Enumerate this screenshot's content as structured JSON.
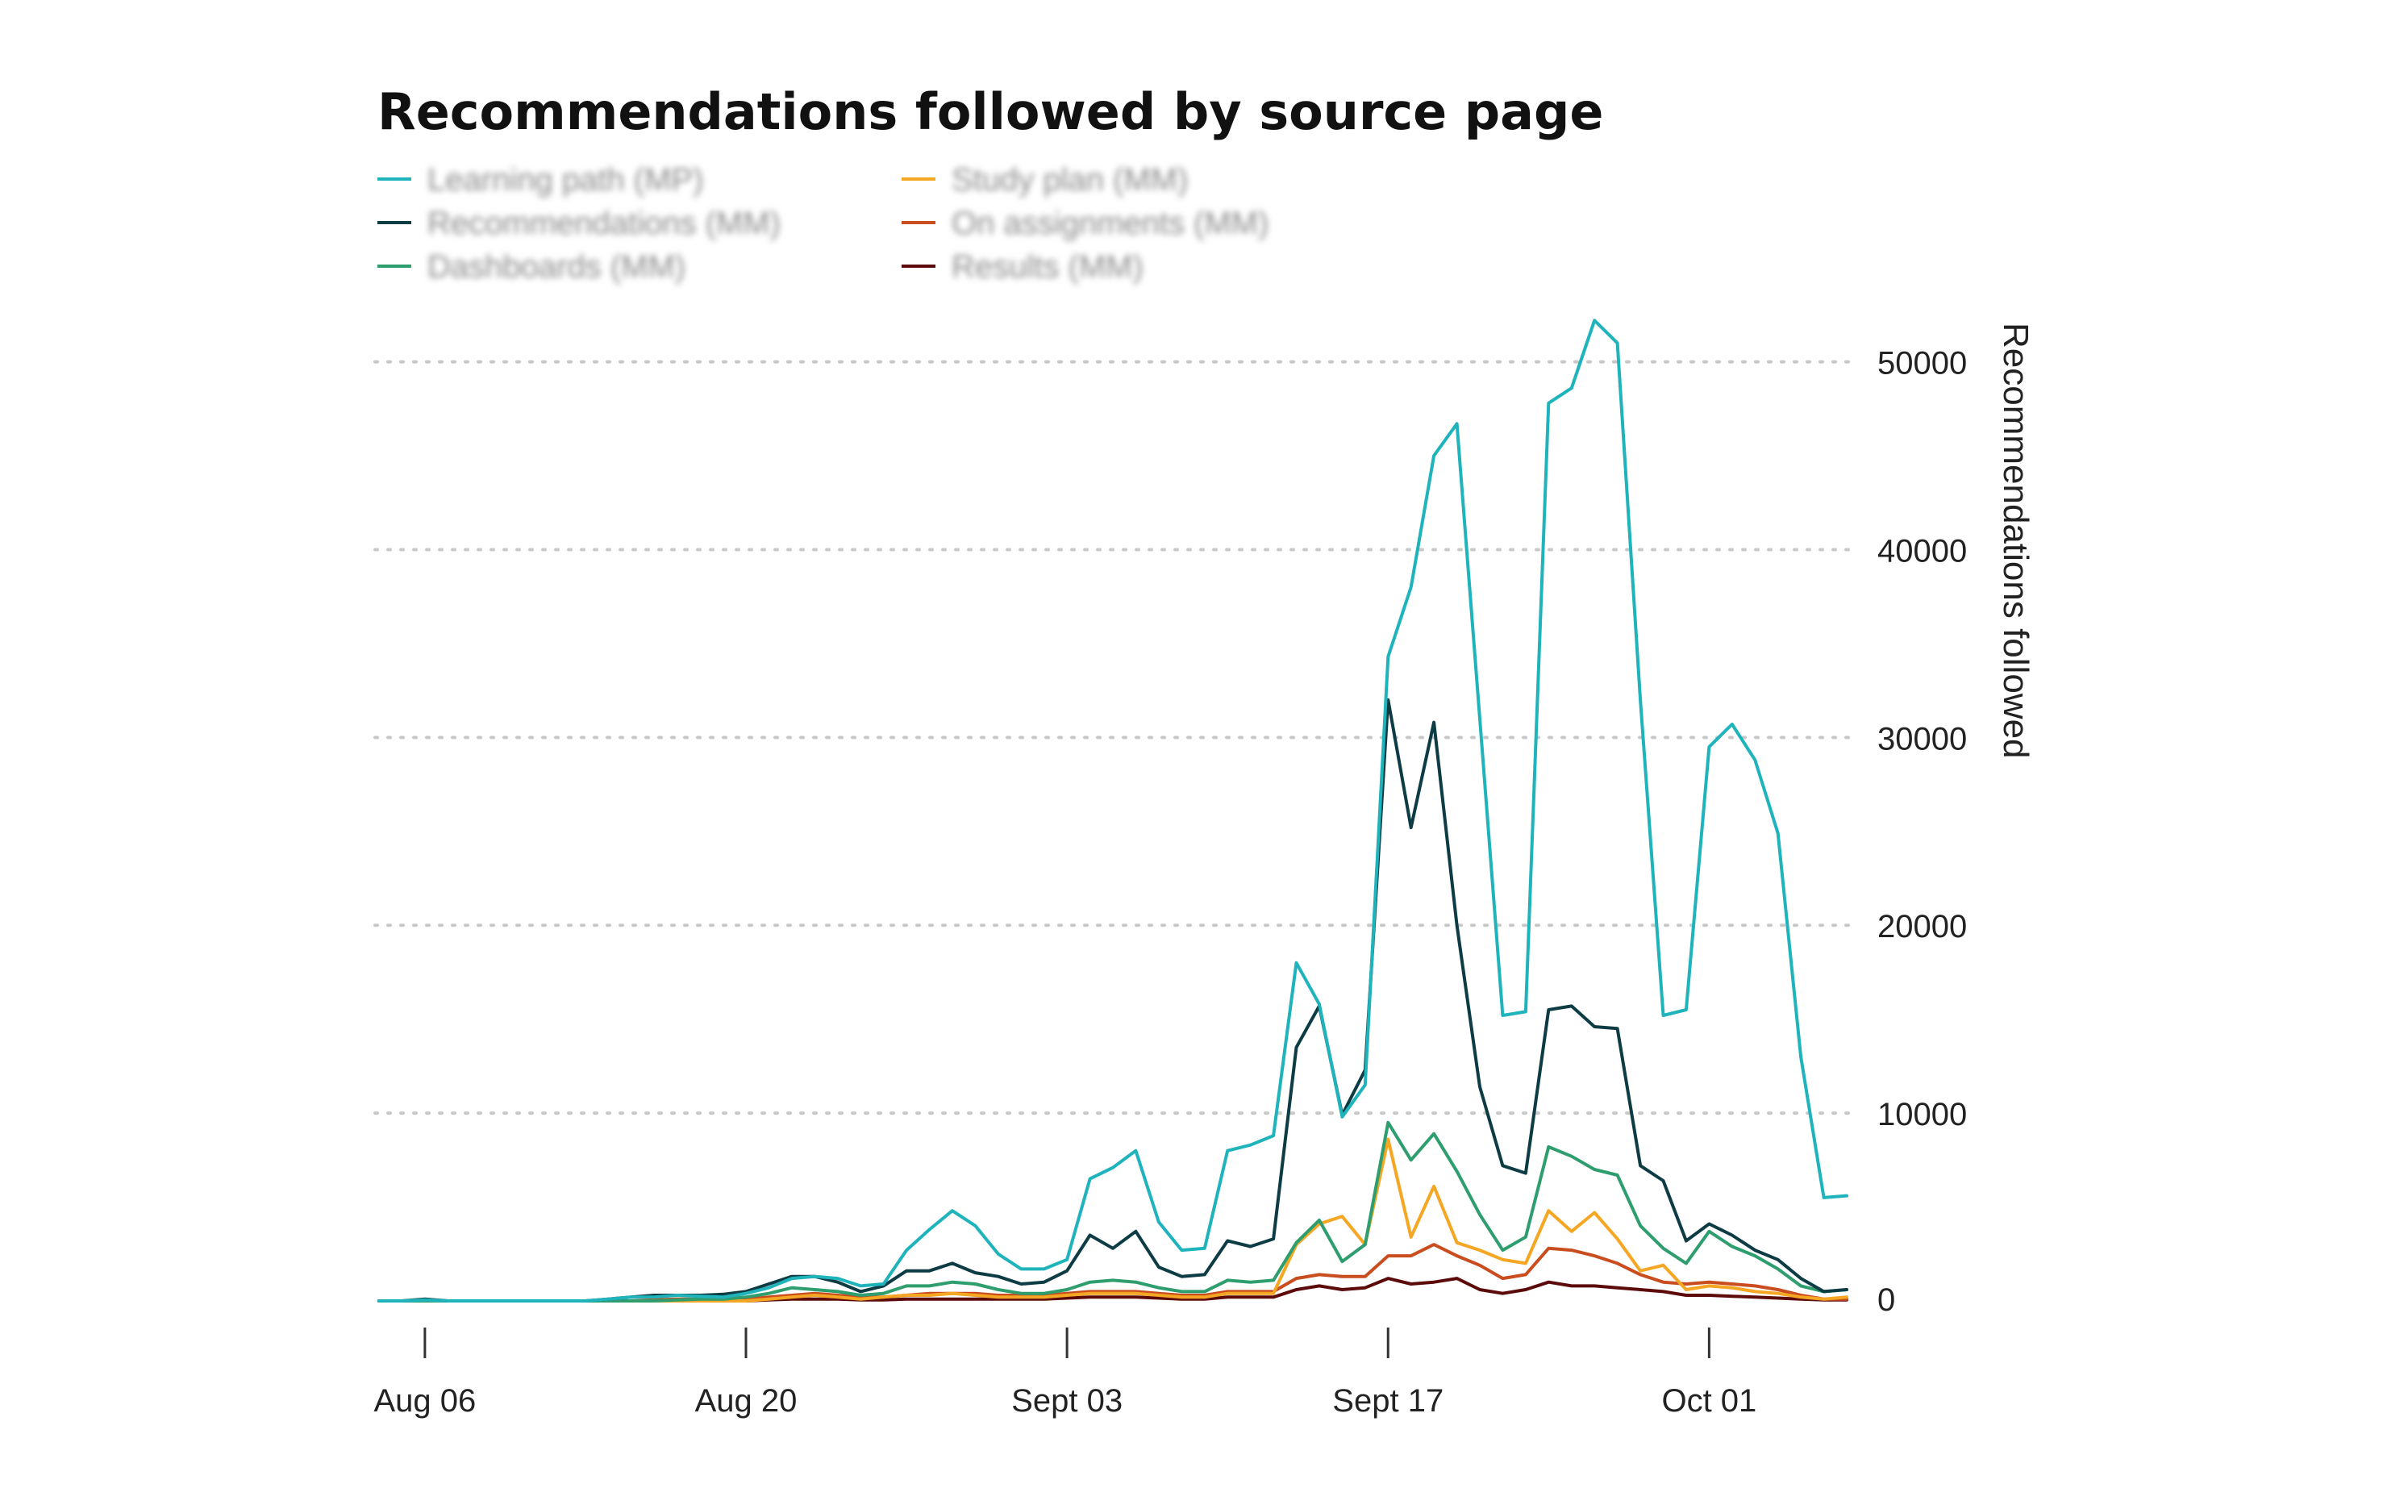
{
  "chart_data": {
    "type": "line",
    "title": "Recommendations followed by source page",
    "ylabel": "Recommendations followed",
    "xlabel": "",
    "ylim": [
      0,
      52000
    ],
    "yticks": [
      0,
      10000,
      20000,
      30000,
      40000,
      50000
    ],
    "y_axis_position": "right",
    "grid": true,
    "legend_position": "top-left",
    "x_ticks": [
      {
        "label": "Aug 06",
        "date": "2018-08-06"
      },
      {
        "label": "Aug 20",
        "date": "2018-08-20"
      },
      {
        "label": "Sept 03",
        "date": "2018-09-03"
      },
      {
        "label": "Sept 17",
        "date": "2018-09-17"
      },
      {
        "label": "Oct 01",
        "date": "2018-10-01"
      }
    ],
    "x": [
      "2018-08-04",
      "2018-08-05",
      "2018-08-06",
      "2018-08-07",
      "2018-08-08",
      "2018-08-09",
      "2018-08-10",
      "2018-08-11",
      "2018-08-12",
      "2018-08-13",
      "2018-08-14",
      "2018-08-15",
      "2018-08-16",
      "2018-08-17",
      "2018-08-18",
      "2018-08-19",
      "2018-08-20",
      "2018-08-21",
      "2018-08-22",
      "2018-08-23",
      "2018-08-24",
      "2018-08-25",
      "2018-08-26",
      "2018-08-27",
      "2018-08-28",
      "2018-08-29",
      "2018-08-30",
      "2018-08-31",
      "2018-09-01",
      "2018-09-02",
      "2018-09-03",
      "2018-09-04",
      "2018-09-05",
      "2018-09-06",
      "2018-09-07",
      "2018-09-08",
      "2018-09-09",
      "2018-09-10",
      "2018-09-11",
      "2018-09-12",
      "2018-09-13",
      "2018-09-14",
      "2018-09-15",
      "2018-09-16",
      "2018-09-17",
      "2018-09-18",
      "2018-09-19",
      "2018-09-20",
      "2018-09-21",
      "2018-09-22",
      "2018-09-23",
      "2018-09-24",
      "2018-09-25",
      "2018-09-26",
      "2018-09-27",
      "2018-09-28",
      "2018-09-29",
      "2018-09-30",
      "2018-10-01",
      "2018-10-02",
      "2018-10-03",
      "2018-10-04",
      "2018-10-05",
      "2018-10-06",
      "2018-10-07"
    ],
    "series": [
      {
        "name": "Learning path (MP)",
        "color": "#1fb3bc",
        "values": [
          0,
          0,
          50,
          0,
          0,
          0,
          0,
          0,
          0,
          0,
          100,
          200,
          200,
          300,
          250,
          200,
          400,
          700,
          1200,
          1300,
          1200,
          800,
          900,
          2700,
          3800,
          4800,
          4000,
          2500,
          1700,
          1700,
          2200,
          6500,
          7100,
          8000,
          4200,
          2700,
          2800,
          8000,
          8300,
          8800,
          18000,
          15800,
          9800,
          11500,
          34300,
          38000,
          45000,
          46700,
          31000,
          15200,
          15400,
          47800,
          48600,
          52200,
          51000,
          32000,
          15200,
          15500,
          29500,
          30700,
          28800,
          24900,
          13000,
          5500,
          5600
        ]
      },
      {
        "name": "Recommendations (MM)",
        "color": "#0d3c45",
        "values": [
          0,
          0,
          100,
          0,
          0,
          0,
          0,
          0,
          0,
          0,
          100,
          200,
          300,
          300,
          300,
          350,
          500,
          900,
          1300,
          1300,
          1000,
          500,
          800,
          1600,
          1600,
          2000,
          1500,
          1300,
          900,
          1000,
          1600,
          3500,
          2800,
          3700,
          1800,
          1300,
          1400,
          3200,
          2900,
          3300,
          13500,
          15700,
          9900,
          12300,
          32000,
          25200,
          30800,
          20000,
          11400,
          7200,
          6800,
          15500,
          15700,
          14600,
          14500,
          7200,
          6400,
          3200,
          4100,
          3500,
          2700,
          2200,
          1200,
          500,
          600
        ]
      },
      {
        "name": "Dashboards (MM)",
        "color": "#2e9e6e",
        "values": [
          0,
          0,
          0,
          0,
          0,
          0,
          0,
          0,
          0,
          0,
          0,
          0,
          0,
          50,
          100,
          100,
          200,
          400,
          700,
          600,
          500,
          300,
          400,
          800,
          800,
          1000,
          900,
          600,
          400,
          400,
          600,
          1000,
          1100,
          1000,
          700,
          500,
          500,
          1100,
          1000,
          1100,
          3100,
          4300,
          2100,
          3000,
          9500,
          7500,
          8900,
          6900,
          4600,
          2700,
          3400,
          8200,
          7700,
          7000,
          6700,
          4000,
          2800,
          2000,
          3700,
          2900,
          2400,
          1700,
          800,
          500,
          600
        ]
      },
      {
        "name": "Study plan (MM)",
        "color": "#f5a623",
        "values": [
          0,
          0,
          0,
          0,
          0,
          0,
          0,
          0,
          0,
          0,
          0,
          0,
          0,
          0,
          0,
          0,
          0,
          100,
          200,
          300,
          200,
          100,
          200,
          300,
          300,
          400,
          300,
          200,
          200,
          200,
          300,
          400,
          400,
          400,
          300,
          200,
          200,
          400,
          400,
          400,
          3000,
          4100,
          4500,
          3000,
          8600,
          3400,
          6100,
          3100,
          2700,
          2200,
          2000,
          4800,
          3700,
          4700,
          3300,
          1600,
          1900,
          600,
          800,
          700,
          500,
          400,
          200,
          100,
          200
        ]
      },
      {
        "name": "On assignments (MM)",
        "color": "#c94d1e",
        "values": [
          0,
          0,
          0,
          0,
          0,
          0,
          0,
          0,
          0,
          0,
          0,
          0,
          50,
          100,
          100,
          100,
          100,
          200,
          300,
          400,
          300,
          200,
          200,
          300,
          400,
          400,
          400,
          300,
          300,
          300,
          400,
          500,
          500,
          500,
          400,
          300,
          300,
          500,
          500,
          500,
          1200,
          1400,
          1300,
          1300,
          2400,
          2400,
          3000,
          2400,
          1900,
          1200,
          1400,
          2800,
          2700,
          2400,
          2000,
          1400,
          1000,
          900,
          1000,
          900,
          800,
          600,
          300,
          100,
          100
        ]
      },
      {
        "name": "Results (MM)",
        "color": "#5c0a0a",
        "values": [
          0,
          0,
          0,
          0,
          0,
          0,
          0,
          0,
          0,
          0,
          0,
          0,
          0,
          0,
          0,
          0,
          0,
          50,
          100,
          100,
          100,
          50,
          50,
          100,
          100,
          100,
          100,
          100,
          100,
          100,
          150,
          200,
          200,
          200,
          150,
          100,
          100,
          200,
          200,
          200,
          600,
          800,
          600,
          700,
          1200,
          900,
          1000,
          1200,
          600,
          400,
          600,
          1000,
          800,
          800,
          700,
          600,
          500,
          300,
          300,
          250,
          200,
          150,
          100,
          50,
          50
        ]
      }
    ]
  }
}
